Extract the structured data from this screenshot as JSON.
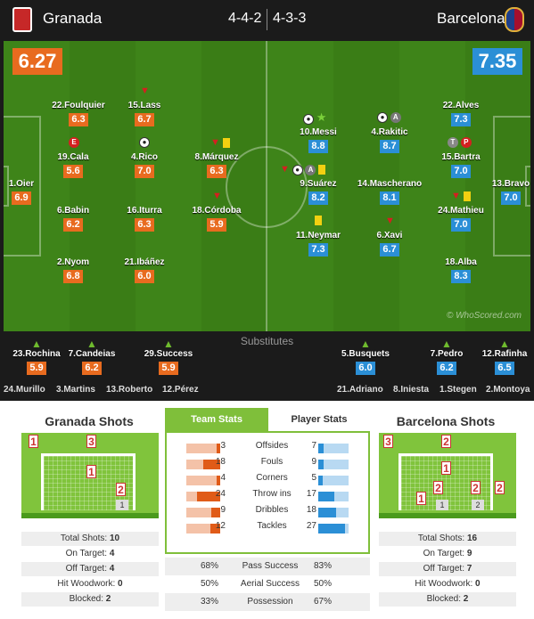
{
  "header": {
    "home_team": "Granada",
    "away_team": "Barcelona",
    "home_formation": "4-4-2",
    "away_formation": "4-3-3",
    "home_rating": "6.27",
    "away_rating": "7.35"
  },
  "colors": {
    "home": "#e86b1f",
    "away": "#2b8fd6",
    "pitch": "#3a7d16",
    "accent": "#7fbf3a"
  },
  "home_players": [
    {
      "name": "1.Oier",
      "rating": "6.9",
      "icons": ""
    },
    {
      "name": "22.Foulquier",
      "rating": "6.3",
      "icons": ""
    },
    {
      "name": "19.Cala",
      "rating": "5.6",
      "icons": "red-circle"
    },
    {
      "name": "6.Babin",
      "rating": "6.2",
      "icons": ""
    },
    {
      "name": "2.Nyom",
      "rating": "6.8",
      "icons": ""
    },
    {
      "name": "15.Lass",
      "rating": "6.7",
      "icons": "sub-off"
    },
    {
      "name": "4.Rico",
      "rating": "7.0",
      "icons": "ball"
    },
    {
      "name": "16.Iturra",
      "rating": "6.3",
      "icons": ""
    },
    {
      "name": "21.Ibáñez",
      "rating": "6.0",
      "icons": ""
    },
    {
      "name": "8.Márquez",
      "rating": "6.3",
      "icons": "sub-off,yellow"
    },
    {
      "name": "18.Córdoba",
      "rating": "5.9",
      "icons": "sub-off"
    }
  ],
  "away_players": [
    {
      "name": "13.Bravo",
      "rating": "7.0",
      "icons": ""
    },
    {
      "name": "22.Alves",
      "rating": "7.3",
      "icons": ""
    },
    {
      "name": "15.Bartra",
      "rating": "7.0",
      "icons": "circles"
    },
    {
      "name": "24.Mathieu",
      "rating": "7.0",
      "icons": "sub-off,yellow"
    },
    {
      "name": "18.Alba",
      "rating": "8.3",
      "icons": ""
    },
    {
      "name": "4.Rakitic",
      "rating": "8.7",
      "icons": "ball,assist"
    },
    {
      "name": "14.Mascherano",
      "rating": "8.1",
      "icons": ""
    },
    {
      "name": "6.Xavi",
      "rating": "6.7",
      "icons": "sub-off"
    },
    {
      "name": "10.Messi",
      "rating": "8.8",
      "icons": "ball,star"
    },
    {
      "name": "9.Suárez",
      "rating": "8.2",
      "icons": "sub-off,ball,assist,yellow"
    },
    {
      "name": "11.Neymar",
      "rating": "7.3",
      "icons": "yellow"
    }
  ],
  "watermark": "© WhoScored.com",
  "substitutes": {
    "title": "Substitutes",
    "home_used": [
      {
        "name": "23.Rochina",
        "rating": "5.9"
      },
      {
        "name": "7.Candeias",
        "rating": "6.2"
      },
      {
        "name": "29.Success",
        "rating": "5.9"
      }
    ],
    "away_used": [
      {
        "name": "5.Busquets",
        "rating": "6.0"
      },
      {
        "name": "7.Pedro",
        "rating": "6.2"
      },
      {
        "name": "12.Rafinha",
        "rating": "6.5"
      }
    ],
    "home_bench": [
      "24.Murillo",
      "3.Martins",
      "13.Roberto",
      "12.Pérez"
    ],
    "away_bench": [
      "21.Adriano",
      "8.Iniesta",
      "1.Stegen",
      "2.Montoya"
    ]
  },
  "home_shots": {
    "title": "Granada Shots",
    "zones": {
      "out_left": "1",
      "out_top": "3",
      "center": "1",
      "right": "2",
      "blocked": "1"
    },
    "rows": [
      {
        "label": "Total Shots:",
        "value": "10"
      },
      {
        "label": "On Target:",
        "value": "4"
      },
      {
        "label": "Off Target:",
        "value": "4"
      },
      {
        "label": "Hit Woodwork:",
        "value": "0"
      },
      {
        "label": "Blocked:",
        "value": "2"
      }
    ]
  },
  "away_shots": {
    "title": "Barcelona Shots",
    "zones": {
      "out_left": "3",
      "out_top": "2",
      "top_center": "1",
      "left": "1",
      "mid": "2",
      "right": "2",
      "out_right": "2",
      "blocked1": "1",
      "blocked2": "2"
    },
    "rows": [
      {
        "label": "Total Shots:",
        "value": "16"
      },
      {
        "label": "On Target:",
        "value": "9"
      },
      {
        "label": "Off Target:",
        "value": "7"
      },
      {
        "label": "Hit Woodwork:",
        "value": "0"
      },
      {
        "label": "Blocked:",
        "value": "2"
      }
    ]
  },
  "tabs": {
    "team_stats": "Team Stats",
    "player_stats": "Player Stats"
  },
  "team_stats": [
    {
      "label": "Offsides",
      "home": "3",
      "away": "7"
    },
    {
      "label": "Fouls",
      "home": "18",
      "away": "9"
    },
    {
      "label": "Corners",
      "home": "4",
      "away": "5"
    },
    {
      "label": "Throw ins",
      "home": "24",
      "away": "17"
    },
    {
      "label": "Dribbles",
      "home": "9",
      "away": "18"
    },
    {
      "label": "Tackles",
      "home": "12",
      "away": "27"
    }
  ],
  "percent_stats": [
    {
      "label": "Pass Success",
      "home": "68%",
      "away": "83%"
    },
    {
      "label": "Aerial Success",
      "home": "50%",
      "away": "50%"
    },
    {
      "label": "Possession",
      "home": "33%",
      "away": "67%"
    }
  ]
}
